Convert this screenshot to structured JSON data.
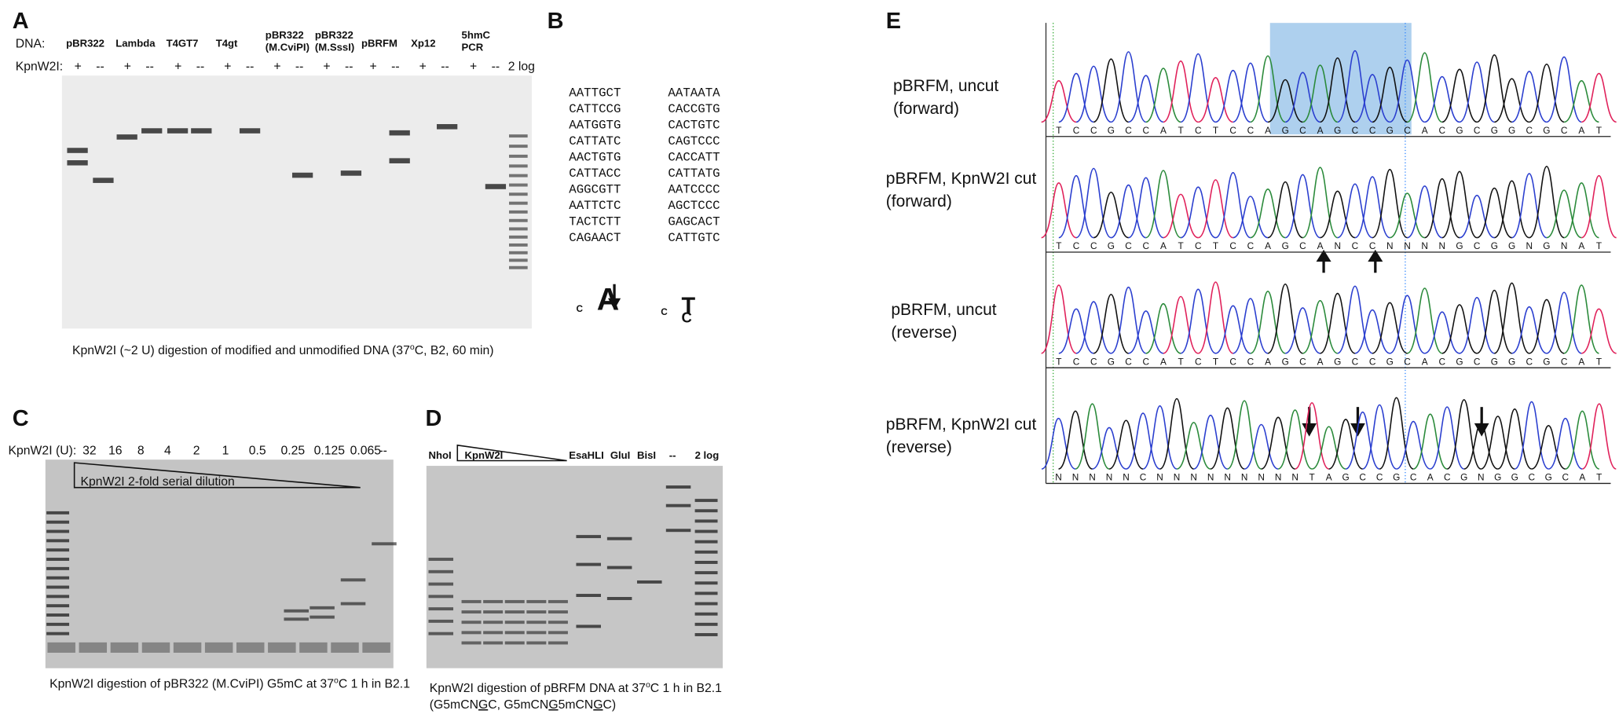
{
  "panel_a": {
    "label": "A",
    "dna_label": "DNA:",
    "enzyme_label": "KpnW2I:",
    "lanes": [
      {
        "name": [
          "pBR322"
        ],
        "treatments": [
          "+",
          "--"
        ]
      },
      {
        "name": [
          "Lambda"
        ],
        "treatments": [
          "+",
          "--"
        ]
      },
      {
        "name": [
          "T4GT7"
        ],
        "treatments": [
          "+",
          "--"
        ]
      },
      {
        "name": [
          "T4gt"
        ],
        "treatments": [
          "+",
          "--"
        ]
      },
      {
        "name": [
          "pBR322",
          "(M.CviPI)"
        ],
        "treatments": [
          "+",
          "--"
        ]
      },
      {
        "name": [
          "pBR322",
          "(M.SssI)"
        ],
        "treatments": [
          "+",
          "--"
        ]
      },
      {
        "name": [
          "pBRFM"
        ],
        "treatments": [
          "+",
          "--"
        ]
      },
      {
        "name": [
          "Xp12"
        ],
        "treatments": [
          "+",
          "--"
        ]
      },
      {
        "name": [
          "5hmC",
          "PCR"
        ],
        "treatments": [
          "+",
          "--"
        ]
      }
    ],
    "ladder": "2 log",
    "caption": [
      "KpnW2I (~2 U) digestion of modified and unmodified DNA (37",
      "o",
      "C, B2, 60 min)"
    ]
  },
  "panel_b": {
    "label": "B",
    "sequences": [
      [
        "AATTGCT",
        "CATTCCG",
        "AATGGTG",
        "CATTATC",
        "AACTGTG",
        "CATTACC",
        "AGGCGTT",
        "AATTCTC",
        "TACTCTT",
        "CAGAACT"
      ],
      [
        "AATAATA",
        "CACCGTG",
        "CACTGTC",
        "CAGTCCC",
        "CACCATT",
        "CATTATG",
        "AATCCCC",
        "AGCTCCC",
        "GAGCACT",
        "CATTGTC"
      ]
    ]
  },
  "panel_c": {
    "label": "C",
    "enzyme_label": "KpnW2I (U):",
    "units": [
      "32",
      "16",
      "8",
      "4",
      "2",
      "1",
      "0.5",
      "0.25",
      "0.125",
      "0.065",
      "--"
    ],
    "dilution_label": "KpnW2I 2-fold serial dilution",
    "caption": [
      "KpnW2I digestion of pBR322 (M.CviPI) G5mC at 37",
      "o",
      "C 1 h in B2.1"
    ]
  },
  "panel_d": {
    "label": "D",
    "lanes": [
      "NhoI",
      "KpnW2I",
      "EsaHLI",
      "GluI",
      "BisI",
      "--",
      "2 log"
    ],
    "caption": [
      "KpnW2I digestion of pBRFM DNA at 37",
      "o",
      "C 1 h in B2.1"
    ],
    "caption_line2": [
      "(G5mCN",
      "G",
      "C, G5mCN",
      "G",
      "5mCN",
      "G",
      "C)"
    ]
  },
  "panel_e": {
    "label": "E",
    "traces": [
      {
        "label": [
          "pBRFM, uncut",
          "(forward)"
        ],
        "bases": "TCCGCCATCTCCAGCAGCCGCACGCGGCGCAT"
      },
      {
        "label": [
          "pBRFM, KpnW2I cut",
          "(forward)"
        ],
        "bases": "TCCGCCATCTCCAGCANCCNNNNGCGGNGNAT"
      },
      {
        "label": [
          "pBRFM, uncut",
          "(reverse)"
        ],
        "bases": "TCCGCCATCTCCAGCAGCCGCACGCGGCGCAT"
      },
      {
        "label": [
          "pBRFM, KpnW2I cut",
          "(reverse)"
        ],
        "bases": "NNNNNCNNNNNNNNNTAGCCGCACGNGGCGCAT"
      }
    ]
  }
}
